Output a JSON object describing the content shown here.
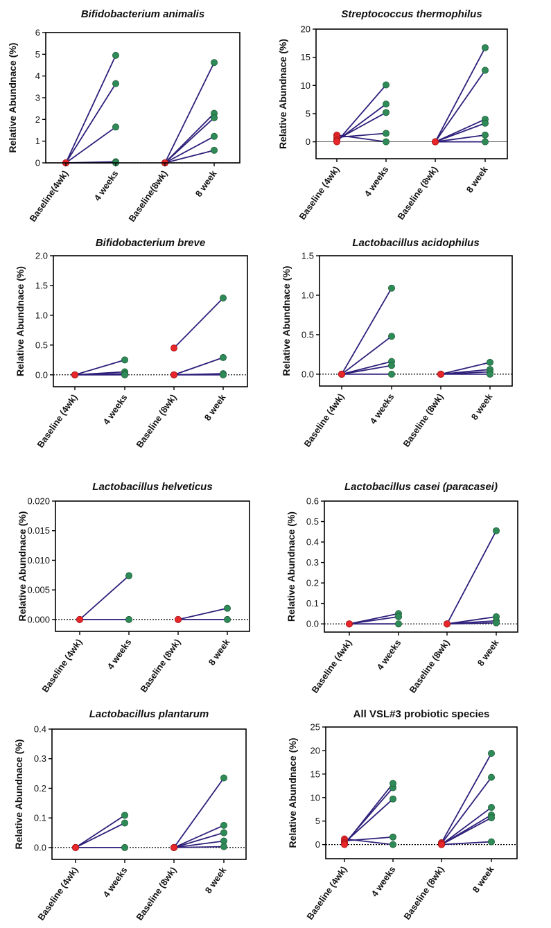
{
  "colors": {
    "line": "#2e1f7a",
    "baseline_marker": "#e8272a",
    "followup_marker": "#2e8b57",
    "axis": "#000000"
  },
  "chart_data": [
    {
      "type": "line",
      "title": "Bifidobacterium animalis",
      "title_style": "italic",
      "ylabel": "Relative Abundnace (%)",
      "ylim": [
        0,
        6
      ],
      "yticks": [
        "0",
        "1",
        "2",
        "3",
        "4",
        "5",
        "6"
      ],
      "yticks_values": [
        0,
        1,
        2,
        3,
        4,
        5,
        6
      ],
      "zero_line": "dotted",
      "categories": [
        "Baseline(4wk)",
        "4 weeks",
        "Baseline(8wk)",
        "8 week"
      ],
      "pairs": [
        {
          "from": [
            0,
            0
          ],
          "to": [
            1,
            4.95
          ]
        },
        {
          "from": [
            0,
            0
          ],
          "to": [
            1,
            3.65
          ]
        },
        {
          "from": [
            0,
            0
          ],
          "to": [
            1,
            1.65
          ]
        },
        {
          "from": [
            0,
            0
          ],
          "to": [
            1,
            0.05
          ]
        },
        {
          "from": [
            0,
            0
          ],
          "to": [
            1,
            0
          ]
        },
        {
          "from": [
            2,
            0
          ],
          "to": [
            3,
            4.62
          ]
        },
        {
          "from": [
            2,
            0
          ],
          "to": [
            3,
            2.28
          ]
        },
        {
          "from": [
            2,
            0
          ],
          "to": [
            3,
            2.08
          ]
        },
        {
          "from": [
            2,
            0
          ],
          "to": [
            3,
            1.22
          ]
        },
        {
          "from": [
            2,
            0
          ],
          "to": [
            3,
            0.58
          ]
        }
      ]
    },
    {
      "type": "line",
      "title": "Streptococcus thermophilus",
      "title_style": "italic",
      "ylabel": "Relative Abundnace (%)",
      "ylim": [
        -3,
        20
      ],
      "yticks": [
        "0",
        "5",
        "10",
        "15",
        "20"
      ],
      "yticks_values": [
        0,
        5,
        10,
        15,
        20
      ],
      "zero_line": "solid",
      "categories": [
        "Baseline (4wk)",
        "4 weeks",
        "Baseline (8wk)",
        "8 week"
      ],
      "pairs": [
        {
          "from": [
            0,
            1.2
          ],
          "to": [
            1,
            0
          ]
        },
        {
          "from": [
            0,
            0.8
          ],
          "to": [
            1,
            1.5
          ]
        },
        {
          "from": [
            0,
            0.4
          ],
          "to": [
            1,
            5.2
          ]
        },
        {
          "from": [
            0,
            0.2
          ],
          "to": [
            1,
            6.7
          ]
        },
        {
          "from": [
            0,
            0
          ],
          "to": [
            1,
            10.1
          ]
        },
        {
          "from": [
            2,
            0
          ],
          "to": [
            3,
            16.7
          ]
        },
        {
          "from": [
            2,
            0
          ],
          "to": [
            3,
            12.7
          ]
        },
        {
          "from": [
            2,
            0
          ],
          "to": [
            3,
            4.0
          ]
        },
        {
          "from": [
            2,
            0
          ],
          "to": [
            3,
            3.3
          ]
        },
        {
          "from": [
            2,
            0
          ],
          "to": [
            3,
            1.2
          ]
        },
        {
          "from": [
            2,
            0
          ],
          "to": [
            3,
            0
          ]
        }
      ]
    },
    {
      "type": "line",
      "title": "Bifidobacterium breve",
      "title_style": "italic",
      "ylabel": "Relative Abundnace (%)",
      "ylim": [
        -0.2,
        2.0
      ],
      "yticks": [
        "0.0",
        "0.5",
        "1.0",
        "1.5",
        "2.0"
      ],
      "yticks_values": [
        0,
        0.5,
        1.0,
        1.5,
        2.0
      ],
      "zero_line": "dotted",
      "categories": [
        "Baseline (4wk)",
        "4 weeks",
        "Baseline (8wk)",
        "8 week"
      ],
      "pairs": [
        {
          "from": [
            0,
            0
          ],
          "to": [
            1,
            0.25
          ]
        },
        {
          "from": [
            0,
            0
          ],
          "to": [
            1,
            0.05
          ]
        },
        {
          "from": [
            0,
            0
          ],
          "to": [
            1,
            0.02
          ]
        },
        {
          "from": [
            0,
            0
          ],
          "to": [
            1,
            0
          ]
        },
        {
          "from": [
            2,
            0.45
          ],
          "to": [
            3,
            1.29
          ]
        },
        {
          "from": [
            2,
            0
          ],
          "to": [
            3,
            0.29
          ]
        },
        {
          "from": [
            2,
            0
          ],
          "to": [
            3,
            0.02
          ]
        },
        {
          "from": [
            2,
            0
          ],
          "to": [
            3,
            0
          ]
        }
      ]
    },
    {
      "type": "line",
      "title": "Lactobacillus acidophilus",
      "title_style": "italic",
      "ylabel": "Relative Abundnace (%)",
      "ylim": [
        -0.15,
        1.5
      ],
      "yticks": [
        "0.0",
        "0.5",
        "1.0",
        "1.5"
      ],
      "yticks_values": [
        0,
        0.5,
        1.0,
        1.5
      ],
      "zero_line": "dotted",
      "categories": [
        "Baseline (4wk)",
        "4 weeks",
        "Baseline (8wk)",
        "8 week"
      ],
      "pairs": [
        {
          "from": [
            0,
            0
          ],
          "to": [
            1,
            1.09
          ]
        },
        {
          "from": [
            0,
            0
          ],
          "to": [
            1,
            0.48
          ]
        },
        {
          "from": [
            0,
            0
          ],
          "to": [
            1,
            0.16
          ]
        },
        {
          "from": [
            0,
            0
          ],
          "to": [
            1,
            0.11
          ]
        },
        {
          "from": [
            0,
            0
          ],
          "to": [
            1,
            0
          ]
        },
        {
          "from": [
            2,
            0
          ],
          "to": [
            3,
            0.15
          ]
        },
        {
          "from": [
            2,
            0
          ],
          "to": [
            3,
            0.06
          ]
        },
        {
          "from": [
            2,
            0
          ],
          "to": [
            3,
            0.03
          ]
        },
        {
          "from": [
            2,
            0
          ],
          "to": [
            3,
            0
          ]
        }
      ]
    },
    {
      "type": "line",
      "title": "Lactobacillus helveticus",
      "title_style": "italic",
      "ylabel": "Relative Abundnace (%)",
      "ylim": [
        -0.002,
        0.02
      ],
      "yticks": [
        "0.000",
        "0.005",
        "0.010",
        "0.015",
        "0.020"
      ],
      "yticks_values": [
        0,
        0.005,
        0.01,
        0.015,
        0.02
      ],
      "zero_line": "dotted",
      "categories": [
        "Baseline (4wk)",
        "4 weeks",
        "Baseline (8wk)",
        "8 week"
      ],
      "pairs": [
        {
          "from": [
            0,
            0
          ],
          "to": [
            1,
            0.0074
          ]
        },
        {
          "from": [
            0,
            0
          ],
          "to": [
            1,
            0
          ]
        },
        {
          "from": [
            2,
            0
          ],
          "to": [
            3,
            0.0019
          ]
        },
        {
          "from": [
            2,
            0
          ],
          "to": [
            3,
            0
          ]
        }
      ]
    },
    {
      "type": "line",
      "title": "Lactobacillus casei (paracasei)",
      "title_style": "italic",
      "ylabel": "Relative Abundnace (%)",
      "ylim": [
        -0.04,
        0.6
      ],
      "yticks": [
        "0.0",
        "0.1",
        "0.2",
        "0.3",
        "0.4",
        "0.5",
        "0.6"
      ],
      "yticks_values": [
        0,
        0.1,
        0.2,
        0.3,
        0.4,
        0.5,
        0.6
      ],
      "zero_line": "dotted",
      "categories": [
        "Baseline (4wk)",
        "4 weeks",
        "Baseline (8wk)",
        "8 week"
      ],
      "pairs": [
        {
          "from": [
            0,
            0
          ],
          "to": [
            1,
            0.05
          ]
        },
        {
          "from": [
            0,
            0
          ],
          "to": [
            1,
            0.035
          ]
        },
        {
          "from": [
            0,
            0
          ],
          "to": [
            1,
            0
          ]
        },
        {
          "from": [
            2,
            0
          ],
          "to": [
            3,
            0.455
          ]
        },
        {
          "from": [
            2,
            0
          ],
          "to": [
            3,
            0.035
          ]
        },
        {
          "from": [
            2,
            0
          ],
          "to": [
            3,
            0.015
          ]
        },
        {
          "from": [
            2,
            0
          ],
          "to": [
            3,
            0.005
          ]
        }
      ]
    },
    {
      "type": "line",
      "title": "Lactobacillus plantarum",
      "title_style": "italic",
      "ylabel": "Relative Abundnace (%)",
      "ylim": [
        -0.04,
        0.4
      ],
      "yticks": [
        "0.0",
        "0.1",
        "0.2",
        "0.3",
        "0.4"
      ],
      "yticks_values": [
        0,
        0.1,
        0.2,
        0.3,
        0.4
      ],
      "zero_line": "dotted",
      "categories": [
        "Baseline (4wk)",
        "4 weeks",
        "Baseline (8wk)",
        "8 week"
      ],
      "pairs": [
        {
          "from": [
            0,
            0
          ],
          "to": [
            1,
            0.109
          ]
        },
        {
          "from": [
            0,
            0
          ],
          "to": [
            1,
            0.083
          ]
        },
        {
          "from": [
            0,
            0
          ],
          "to": [
            1,
            0
          ]
        },
        {
          "from": [
            2,
            0
          ],
          "to": [
            3,
            0.235
          ]
        },
        {
          "from": [
            2,
            0
          ],
          "to": [
            3,
            0.075
          ]
        },
        {
          "from": [
            2,
            0
          ],
          "to": [
            3,
            0.05
          ]
        },
        {
          "from": [
            2,
            0
          ],
          "to": [
            3,
            0.022
          ]
        },
        {
          "from": [
            2,
            0
          ],
          "to": [
            3,
            0.003
          ]
        }
      ]
    },
    {
      "type": "line",
      "title": "All VSL#3 probiotic species",
      "title_style": "normal",
      "ylabel": "Relative Abundnace (%)",
      "ylim": [
        -3,
        25
      ],
      "yticks": [
        "0",
        "5",
        "10",
        "15",
        "20",
        "25"
      ],
      "yticks_values": [
        0,
        5,
        10,
        15,
        20,
        25
      ],
      "zero_line": "dotted",
      "categories": [
        "Baseline (4wk)",
        "4 weeks",
        "Baseline (8wk)",
        "8 week"
      ],
      "pairs": [
        {
          "from": [
            0,
            1.2
          ],
          "to": [
            1,
            0
          ]
        },
        {
          "from": [
            0,
            0.8
          ],
          "to": [
            1,
            1.6
          ]
        },
        {
          "from": [
            0,
            0.4
          ],
          "to": [
            1,
            9.7
          ]
        },
        {
          "from": [
            0,
            0.2
          ],
          "to": [
            1,
            12.1
          ]
        },
        {
          "from": [
            0,
            0
          ],
          "to": [
            1,
            13.0
          ]
        },
        {
          "from": [
            2,
            0.4
          ],
          "to": [
            3,
            19.4
          ]
        },
        {
          "from": [
            2,
            0.2
          ],
          "to": [
            3,
            14.3
          ]
        },
        {
          "from": [
            2,
            0
          ],
          "to": [
            3,
            7.9
          ]
        },
        {
          "from": [
            2,
            0
          ],
          "to": [
            3,
            6.3
          ]
        },
        {
          "from": [
            2,
            0
          ],
          "to": [
            3,
            5.7
          ]
        },
        {
          "from": [
            2,
            0
          ],
          "to": [
            3,
            0.6
          ]
        }
      ]
    }
  ]
}
